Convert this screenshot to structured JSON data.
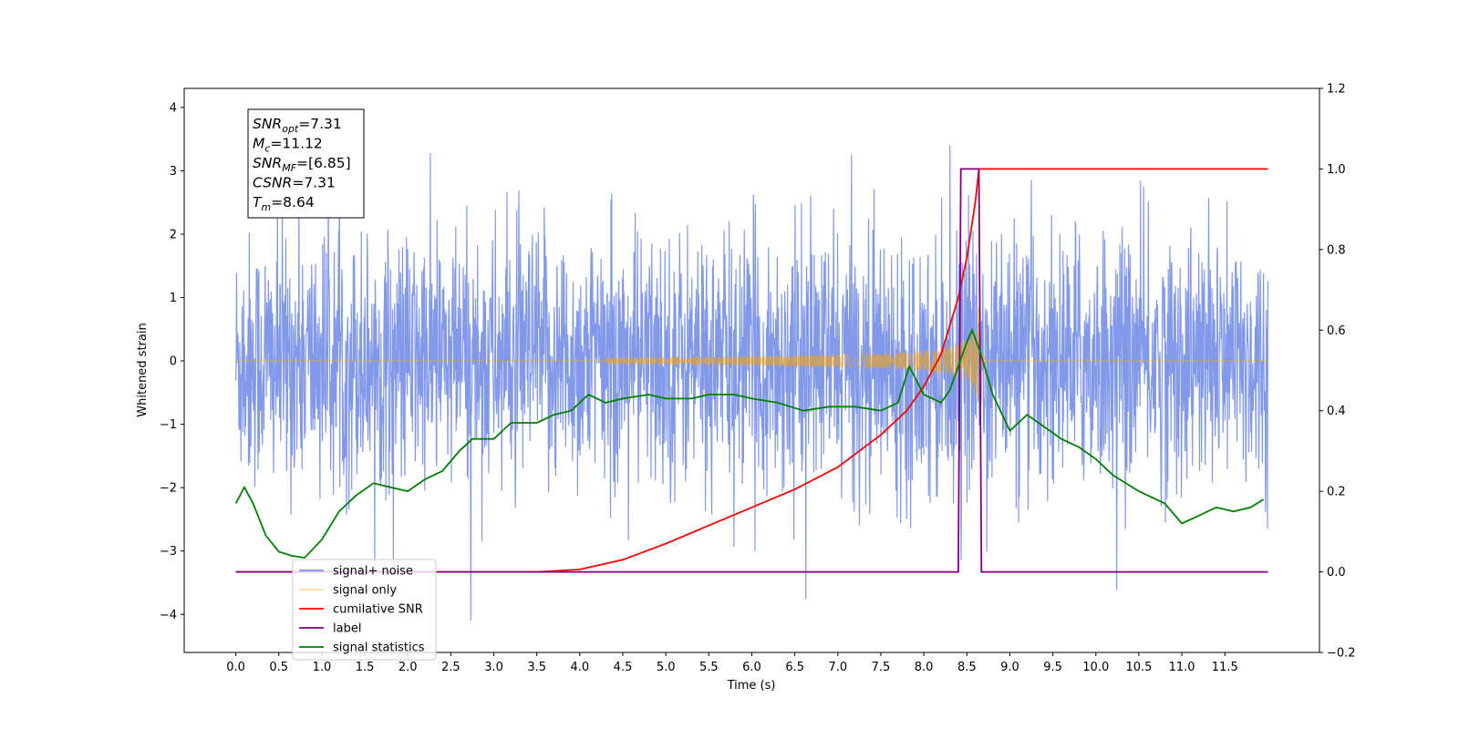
{
  "chart_data": {
    "type": "line",
    "xlabel": "Time (s)",
    "ylabel": "Whitened strain",
    "xlim": [
      -0.6,
      12.6
    ],
    "ylim": [
      -4.6,
      4.3
    ],
    "ylim_right": [
      -0.2,
      1.2
    ],
    "x_ticks": [
      "0.0",
      "0.5",
      "1.0",
      "1.5",
      "2.0",
      "2.5",
      "3.0",
      "3.5",
      "4.0",
      "4.5",
      "5.0",
      "5.5",
      "6.0",
      "6.5",
      "7.0",
      "7.5",
      "8.0",
      "8.5",
      "9.0",
      "9.5",
      "10.0",
      "10.5",
      "11.0",
      "11.5"
    ],
    "y_ticks_left": [
      "4",
      "3",
      "2",
      "1",
      "0",
      "−1",
      "−2",
      "−3",
      "−4"
    ],
    "y_ticks_right": [
      "1.2",
      "1.0",
      "0.8",
      "0.6",
      "0.4",
      "0.2",
      "0.0",
      "−0.2"
    ],
    "grid": false,
    "legend_position": "lower-left",
    "info_box": [
      {
        "base": "SNR",
        "sub": "opt",
        "rest": "=7.31"
      },
      {
        "base": "M",
        "sub": "c",
        "rest": "=11.12"
      },
      {
        "base": "SNR",
        "sub": "MF",
        "rest": "=[6.85]"
      },
      {
        "base": "CSNR",
        "sub": "",
        "rest": "=7.31"
      },
      {
        "base": "T",
        "sub": "m",
        "rest": "=8.64"
      }
    ],
    "series": [
      {
        "name": "signal+ noise",
        "color": "#7b93e8",
        "axis": "left",
        "x_range": [
          0,
          12
        ],
        "noise_std": 1.0,
        "amplitude_range": [
          -4.1,
          3.75
        ]
      },
      {
        "name": "signal only",
        "color": "#ffa500",
        "axis": "left",
        "chirp": {
          "start": 4.3,
          "merger": 8.64,
          "peak_amplitude": 0.9
        }
      },
      {
        "name": "cumilative SNR",
        "color": "#ff0000",
        "axis": "right",
        "x": [
          0,
          3.5,
          4.0,
          4.5,
          5.0,
          5.5,
          6.0,
          6.5,
          7.0,
          7.5,
          7.8,
          8.0,
          8.2,
          8.4,
          8.5,
          8.6,
          8.64,
          12.0
        ],
        "y": [
          0,
          0.0,
          0.006,
          0.03,
          0.07,
          0.115,
          0.16,
          0.205,
          0.26,
          0.34,
          0.4,
          0.46,
          0.54,
          0.68,
          0.78,
          0.92,
          1.0,
          1.0
        ]
      },
      {
        "name": "label",
        "color": "#800080",
        "axis": "right",
        "x": [
          0,
          8.4,
          8.43,
          8.64,
          8.67,
          12.0
        ],
        "y": [
          0,
          0,
          1,
          1,
          0,
          0
        ]
      },
      {
        "name": "signal statistics",
        "color": "#008000",
        "axis": "right",
        "x": [
          0,
          0.1,
          0.2,
          0.35,
          0.5,
          0.65,
          0.8,
          1.0,
          1.2,
          1.4,
          1.6,
          1.8,
          2.0,
          2.2,
          2.4,
          2.6,
          2.75,
          3.0,
          3.2,
          3.5,
          3.7,
          3.9,
          4.1,
          4.3,
          4.5,
          4.8,
          5.0,
          5.3,
          5.5,
          5.8,
          6.0,
          6.3,
          6.6,
          6.9,
          7.2,
          7.5,
          7.7,
          7.83,
          8.0,
          8.2,
          8.3,
          8.5,
          8.56,
          8.65,
          8.8,
          9.0,
          9.2,
          9.4,
          9.6,
          9.8,
          10.0,
          10.2,
          10.5,
          10.8,
          11.0,
          11.2,
          11.4,
          11.6,
          11.8,
          11.95
        ],
        "y": [
          0.17,
          0.21,
          0.17,
          0.09,
          0.05,
          0.04,
          0.035,
          0.08,
          0.15,
          0.19,
          0.22,
          0.21,
          0.2,
          0.23,
          0.25,
          0.3,
          0.33,
          0.33,
          0.37,
          0.37,
          0.39,
          0.4,
          0.44,
          0.42,
          0.43,
          0.44,
          0.43,
          0.43,
          0.44,
          0.44,
          0.43,
          0.42,
          0.4,
          0.41,
          0.41,
          0.4,
          0.42,
          0.51,
          0.44,
          0.42,
          0.45,
          0.57,
          0.6,
          0.55,
          0.44,
          0.35,
          0.39,
          0.36,
          0.33,
          0.31,
          0.28,
          0.24,
          0.2,
          0.17,
          0.12,
          0.14,
          0.16,
          0.15,
          0.16,
          0.18
        ]
      }
    ]
  }
}
